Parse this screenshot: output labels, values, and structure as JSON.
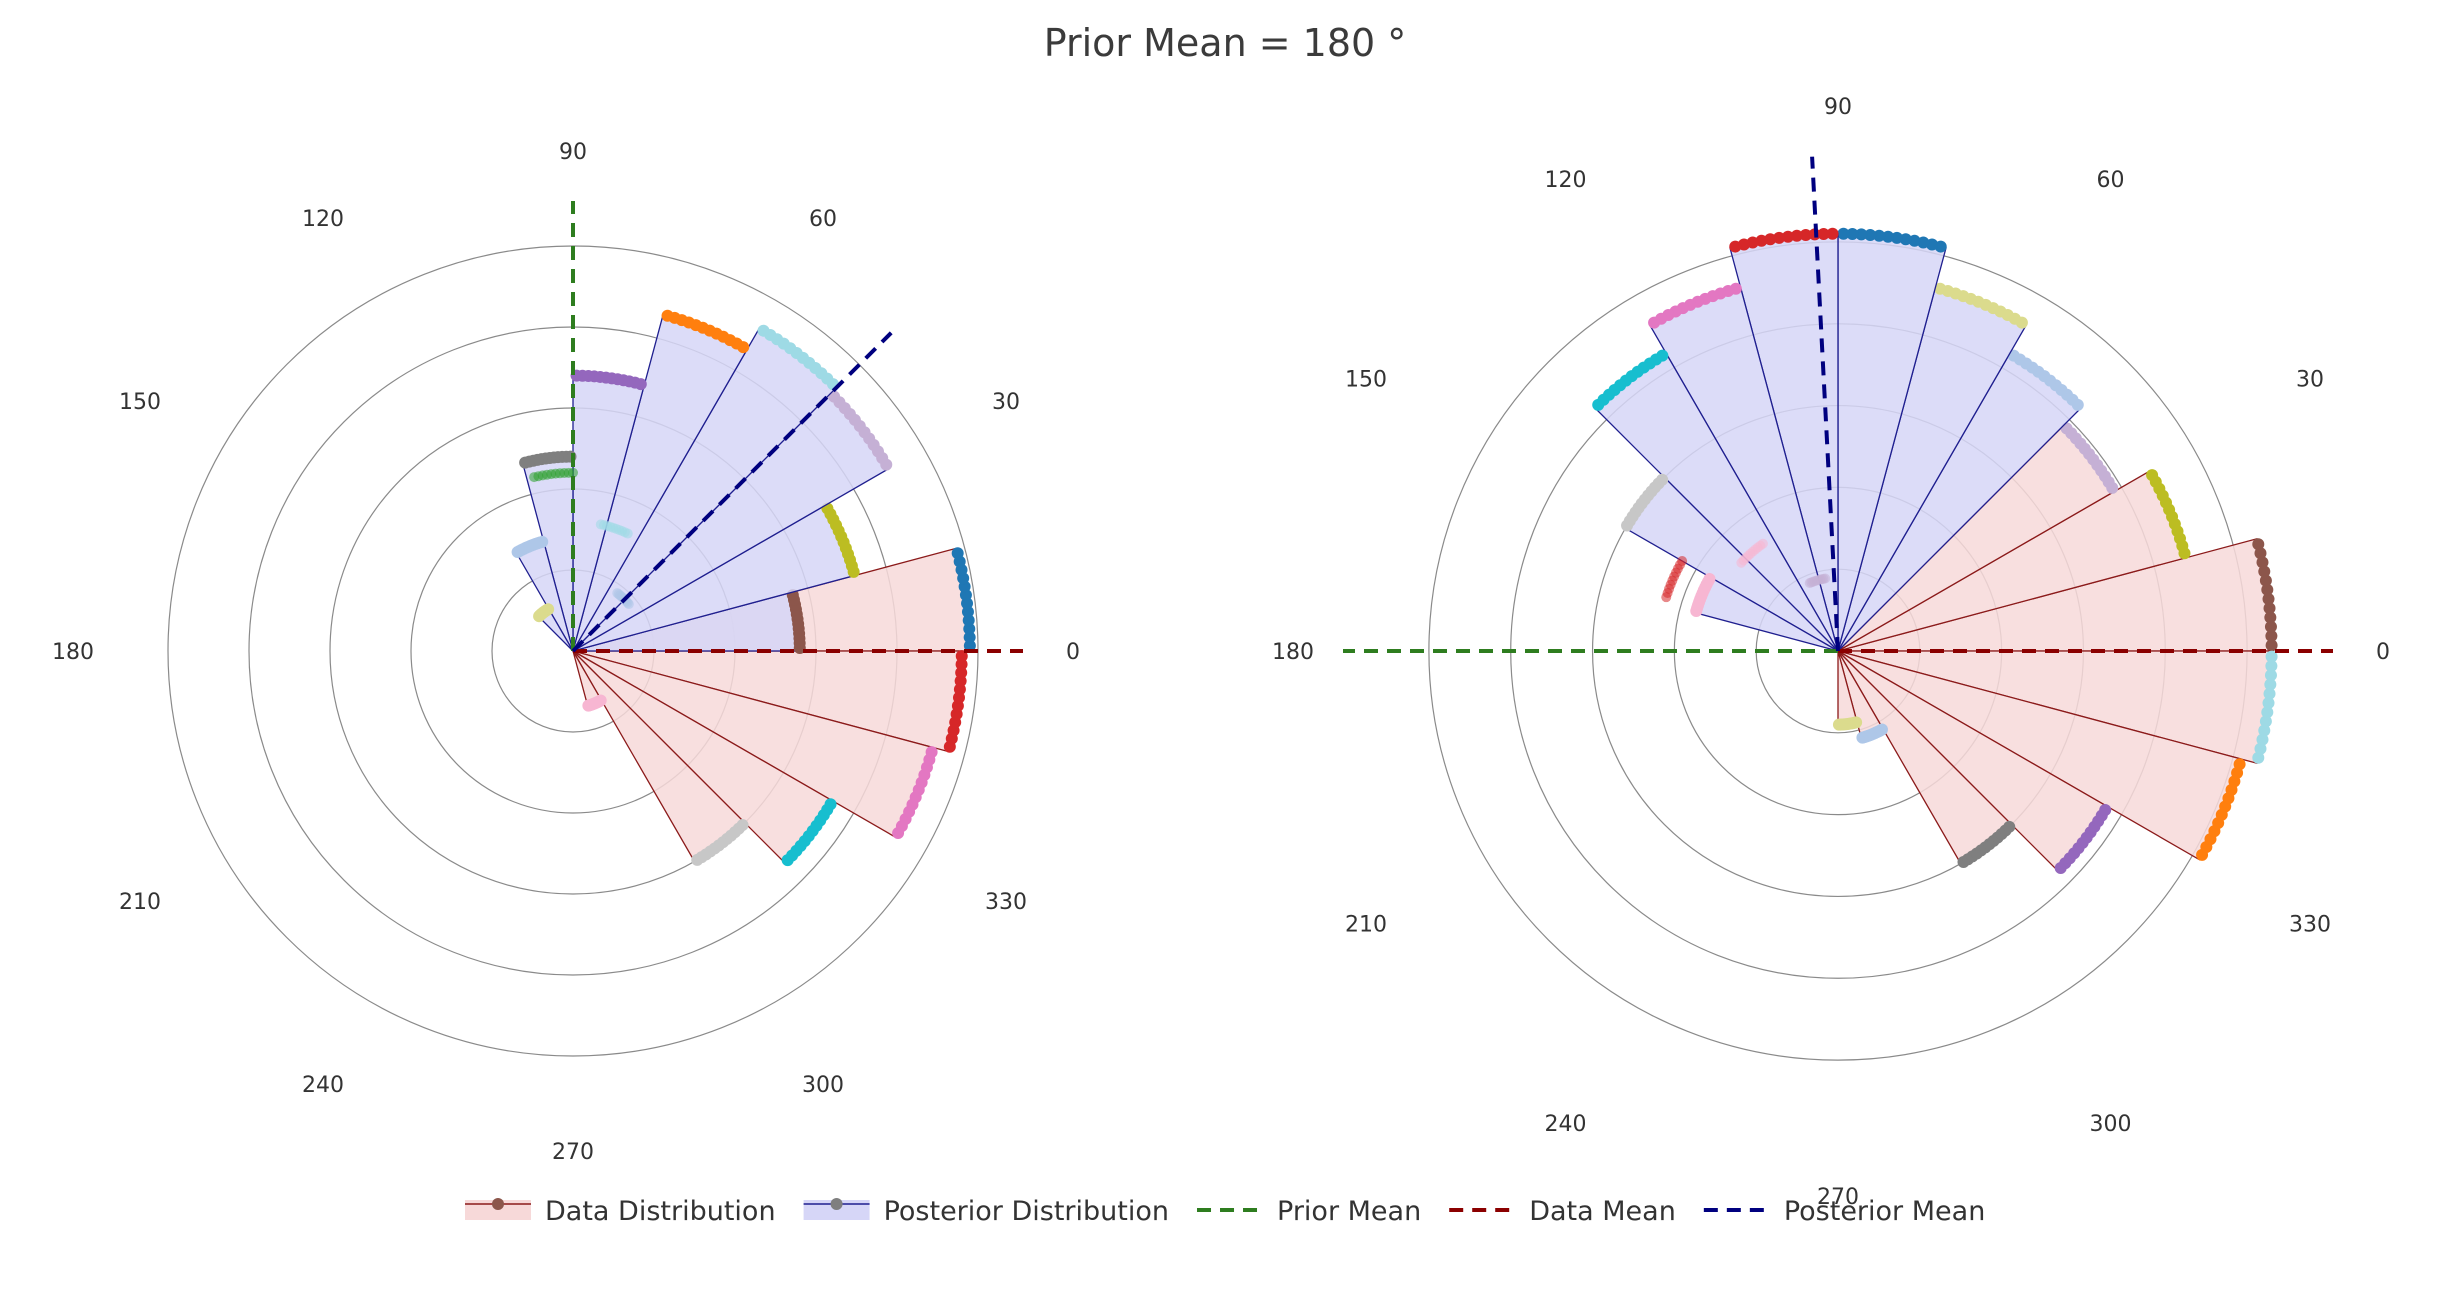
{
  "title": "Prior Mean = 180 °",
  "legend": [
    {
      "label": "Data Distribution",
      "kind": "data"
    },
    {
      "label": "Posterior Distribution",
      "kind": "posterior"
    },
    {
      "label": "Prior Mean",
      "kind": "prior_line"
    },
    {
      "label": "Data Mean",
      "kind": "data_line"
    },
    {
      "label": "Posterior Mean",
      "kind": "posterior_line"
    }
  ],
  "colors": {
    "data_fill": "#f7d9d9",
    "data_stroke": "#8b1a1a",
    "posterior_fill": "#d6d6f7",
    "posterior_stroke": "#1f1f8f",
    "prior_mean": "#2e7d1f",
    "data_mean": "#8b0000",
    "posterior_mean": "#00007f",
    "grid": "#8a8a8a",
    "marker_palette": [
      "#1f77b4",
      "#ff7f0e",
      "#2ca02c",
      "#d62728",
      "#9467bd",
      "#8c564b",
      "#e377c2",
      "#7f7f7f",
      "#bcbd22",
      "#17becf",
      "#aec7e8",
      "#c5b0d5",
      "#c7c7c7",
      "#dbdb8d",
      "#9edae5",
      "#f7b6d2"
    ]
  },
  "chart_data": [
    {
      "type": "polar_bar",
      "angular_ticks": [
        "0",
        "30",
        "60",
        "90",
        "120",
        "150",
        "180",
        "210",
        "240",
        "270",
        "300",
        "330"
      ],
      "radial_range": [
        0,
        5
      ],
      "radial_grid": [
        1,
        2,
        3,
        4,
        5
      ],
      "bin_width_deg": 15,
      "prior_mean_deg": 90,
      "data_mean_deg": 0,
      "posterior_mean_deg": 45,
      "series": [
        {
          "name": "Data Distribution",
          "type": "bar",
          "bins": [
            {
              "angle": 7.5,
              "value": 4.9
            },
            {
              "angle": 352.5,
              "value": 4.8
            },
            {
              "angle": 337.5,
              "value": 4.6
            },
            {
              "angle": 322.5,
              "value": 3.7
            },
            {
              "angle": 307.5,
              "value": 3.0
            },
            {
              "angle": 292.5,
              "value": 0.7
            }
          ]
        },
        {
          "name": "Posterior Distribution",
          "type": "bar",
          "bins": [
            {
              "angle": 7.5,
              "value": 2.8
            },
            {
              "angle": 22.5,
              "value": 3.6
            },
            {
              "angle": 37.5,
              "value": 4.5
            },
            {
              "angle": 52.5,
              "value": 4.6
            },
            {
              "angle": 67.5,
              "value": 4.3
            },
            {
              "angle": 82.5,
              "value": 3.4
            },
            {
              "angle": 97.5,
              "value": 2.4
            },
            {
              "angle": 112.5,
              "value": 1.4
            },
            {
              "angle": 127.5,
              "value": 0.6
            }
          ]
        }
      ]
    },
    {
      "type": "polar_bar",
      "angular_ticks": [
        "0",
        "30",
        "60",
        "90",
        "120",
        "150",
        "180",
        "210",
        "240",
        "270",
        "300",
        "330"
      ],
      "radial_range": [
        0,
        5.5
      ],
      "radial_grid": [
        1,
        2,
        3,
        4,
        5
      ],
      "bin_width_deg": 15,
      "prior_mean_deg": 180,
      "data_mean_deg": 0,
      "posterior_mean_deg": 93,
      "series": [
        {
          "name": "Data Distribution",
          "type": "bar",
          "bins": [
            {
              "angle": 7.5,
              "value": 5.3
            },
            {
              "angle": 22.5,
              "value": 4.4
            },
            {
              "angle": 37.5,
              "value": 3.9
            },
            {
              "angle": 352.5,
              "value": 5.3
            },
            {
              "angle": 337.5,
              "value": 5.1
            },
            {
              "angle": 322.5,
              "value": 3.8
            },
            {
              "angle": 307.5,
              "value": 3.0
            },
            {
              "angle": 292.5,
              "value": 1.1
            },
            {
              "angle": 277.5,
              "value": 0.9
            }
          ]
        },
        {
          "name": "Posterior Distribution",
          "type": "bar",
          "bins": [
            {
              "angle": 52.5,
              "value": 4.2
            },
            {
              "angle": 67.5,
              "value": 4.6
            },
            {
              "angle": 82.5,
              "value": 5.1
            },
            {
              "angle": 97.5,
              "value": 5.1
            },
            {
              "angle": 112.5,
              "value": 4.6
            },
            {
              "angle": 127.5,
              "value": 4.2
            },
            {
              "angle": 142.5,
              "value": 3.0
            },
            {
              "angle": 157.5,
              "value": 1.8
            }
          ]
        }
      ]
    }
  ]
}
